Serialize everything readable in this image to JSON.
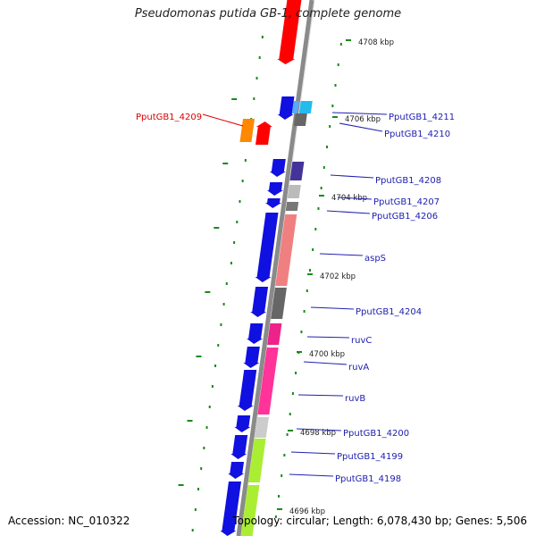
{
  "title": "Pseudomonas putida GB-1, complete genome",
  "accession": "Accession: NC_010322",
  "topology": "Topology: circular; Length: 6,078,430 bp; Genes: 5,506",
  "colors": {
    "forward": "#1010e0",
    "backbone": "#8a8a8a",
    "label_default": "#2020b0",
    "label_highlight": "#dd0000",
    "tick": "#1a8a1a"
  },
  "ticks": [
    {
      "label": "4708 kbp"
    },
    {
      "label": "4706 kbp"
    },
    {
      "label": "4704 kbp"
    },
    {
      "label": "4702 kbp"
    },
    {
      "label": "4700 kbp"
    },
    {
      "label": "4698 kbp"
    },
    {
      "label": "4696 kbp"
    }
  ],
  "genes": [
    {
      "label": "PputGB1_4211",
      "color": "#22bbee"
    },
    {
      "label": "PputGB1_4210",
      "color": "#666666"
    },
    {
      "label": "PputGB1_4209",
      "color": "#ff8800",
      "highlight": true
    },
    {
      "label": "PputGB1_4208",
      "color": "#443399"
    },
    {
      "label": "PputGB1_4207",
      "color": "#bbbbbb"
    },
    {
      "label": "PputGB1_4206",
      "color": "#777777"
    },
    {
      "label": "aspS",
      "color": "#f08080"
    },
    {
      "label": "PputGB1_4204",
      "color": "#666666"
    },
    {
      "label": "ruvC",
      "color": "#ee2288"
    },
    {
      "label": "ruvA",
      "color": "#ff3399"
    },
    {
      "label": "ruvB",
      "color": "#ff44aa"
    },
    {
      "label": "PputGB1_4200",
      "color": "#cccccc"
    },
    {
      "label": "PputGB1_4199",
      "color": "#aaee33"
    },
    {
      "label": "PputGB1_4198",
      "color": "#aaee33"
    }
  ]
}
